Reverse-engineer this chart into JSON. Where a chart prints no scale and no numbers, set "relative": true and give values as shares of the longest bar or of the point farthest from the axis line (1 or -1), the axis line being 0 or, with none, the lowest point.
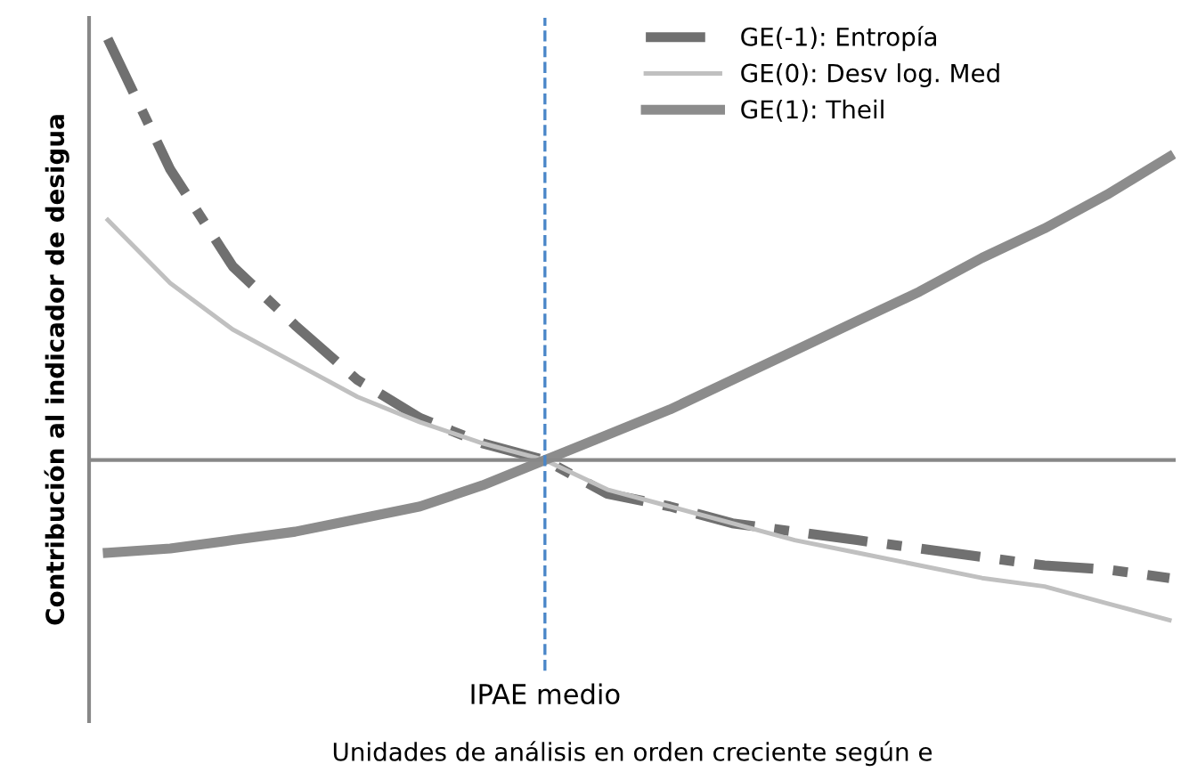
{
  "chart_data": {
    "type": "line",
    "relative": true,
    "xlabel": "Unidades de análisis en orden creciente según e",
    "ylabel": "Contribuciόn al indicador de desigua",
    "categories": [
      null,
      null,
      null,
      null,
      null,
      null,
      null,
      null,
      null,
      null,
      null,
      null,
      null,
      null,
      null,
      null,
      null,
      null
    ],
    "series": [
      {
        "name": "GE(-1): Entropía",
        "color": "#707070",
        "line_style": "dashed",
        "values": [
          1,
          0.69,
          0.46,
          0.32,
          0.19,
          0.1,
          0.04,
          0,
          -0.08,
          -0.11,
          -0.15,
          -0.17,
          -0.19,
          -0.21,
          -0.23,
          -0.25,
          -0.26,
          -0.28
        ]
      },
      {
        "name": "GE(0): Desv log. Med",
        "color": "#c0c0c0",
        "line_style": "solid",
        "values": [
          0.57,
          0.42,
          0.31,
          0.23,
          0.15,
          0.09,
          0.04,
          0,
          -0.07,
          -0.11,
          -0.15,
          -0.19,
          -0.22,
          -0.25,
          -0.28,
          -0.3,
          -0.34,
          -0.38
        ]
      },
      {
        "name": "GE(1): Theil",
        "color": "#8c8c8c",
        "line_style": "solid",
        "values": [
          -0.22,
          -0.21,
          -0.19,
          -0.17,
          -0.14,
          -0.11,
          -0.06,
          0,
          0.06,
          0.12,
          0.19,
          0.26,
          0.33,
          0.4,
          0.48,
          0.55,
          0.63,
          0.72
        ]
      }
    ],
    "annotations": [
      "IPAE medio"
    ],
    "legend": "top right"
  }
}
